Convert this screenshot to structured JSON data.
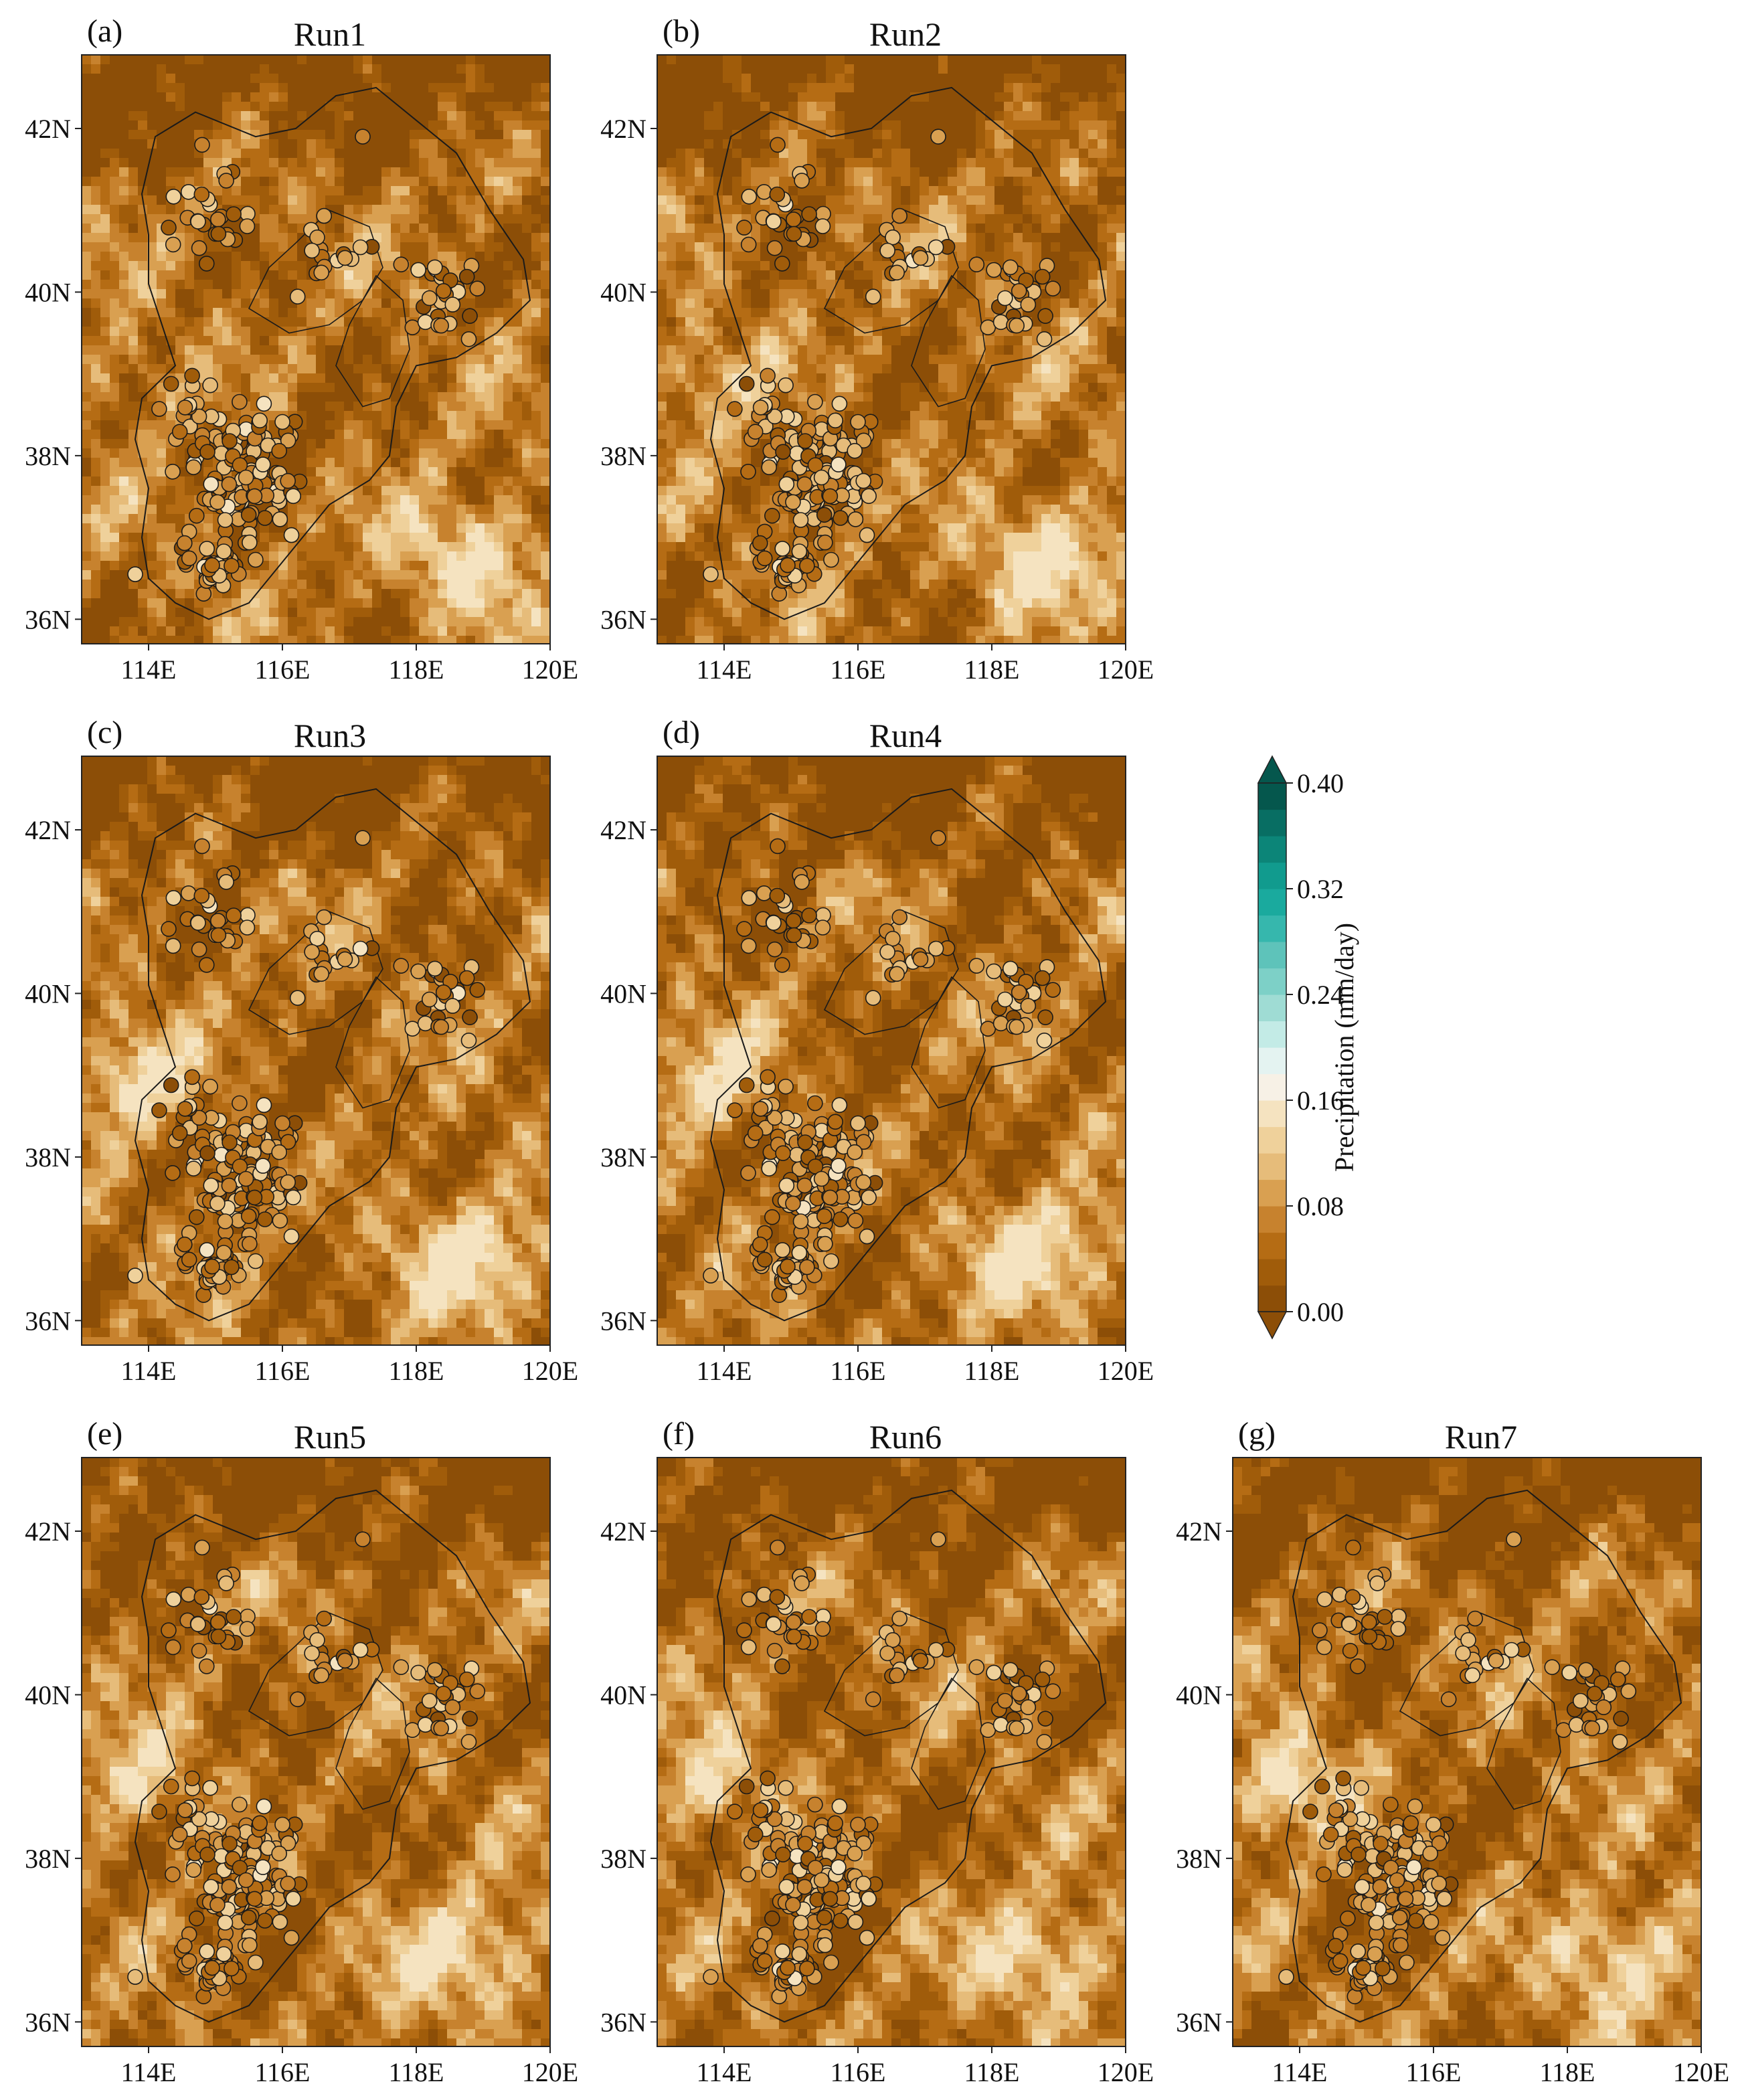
{
  "colorbar": {
    "label": "Precipitation (mm/day)",
    "ticks": [
      "0.00",
      "0.08",
      "0.16",
      "0.24",
      "0.32",
      "0.40"
    ],
    "levels": [
      0.0,
      0.02,
      0.04,
      0.06,
      0.08,
      0.1,
      0.12,
      0.14,
      0.16,
      0.18,
      0.2,
      0.22,
      0.24,
      0.26,
      0.28,
      0.3,
      0.32,
      0.34,
      0.36,
      0.38,
      0.4
    ],
    "colors": [
      "#8c4e07",
      "#a05c0a",
      "#b56c14",
      "#c7822e",
      "#d9a051",
      "#e6bc7a",
      "#efd19b",
      "#f5e3c0",
      "#f7f1e6",
      "#e4f3f1",
      "#c3ebe6",
      "#9fdcd4",
      "#7dd0c7",
      "#5ec3ba",
      "#36b7ad",
      "#1aaa9e",
      "#119b8e",
      "#0c8578",
      "#086e63",
      "#05574d"
    ],
    "extend": "both"
  },
  "map": {
    "lon_range": [
      113,
      120
    ],
    "lat_range": [
      35.7,
      42.9
    ],
    "lon_ticks": [
      "114E",
      "116E",
      "118E",
      "120E"
    ],
    "lat_ticks": [
      "36N",
      "38N",
      "40N",
      "42N"
    ],
    "lon_tick_values": [
      114,
      116,
      118,
      120
    ],
    "lat_tick_values": [
      36,
      38,
      40,
      42
    ]
  },
  "panels": [
    {
      "letter": "(a)",
      "title": "Run1"
    },
    {
      "letter": "(b)",
      "title": "Run2"
    },
    {
      "letter": "(c)",
      "title": "Run3"
    },
    {
      "letter": "(d)",
      "title": "Run4"
    },
    {
      "letter": "(e)",
      "title": "Run5"
    },
    {
      "letter": "(f)",
      "title": "Run6"
    },
    {
      "letter": "(g)",
      "title": "Run7"
    }
  ]
}
